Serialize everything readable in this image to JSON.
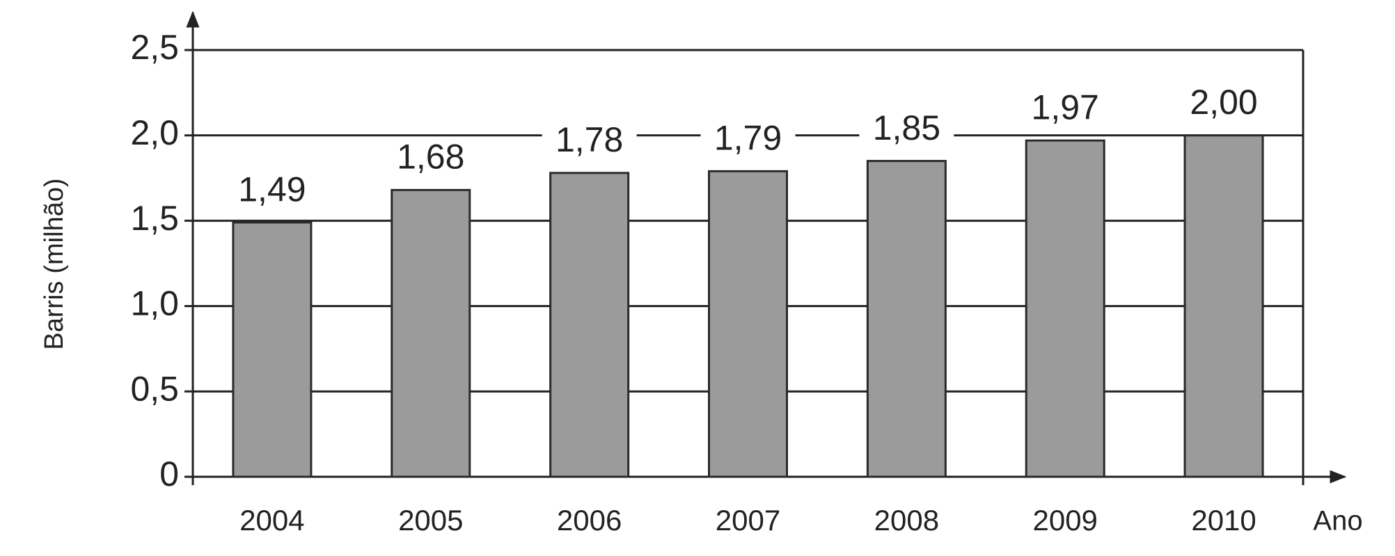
{
  "chart_data": {
    "type": "bar",
    "y_label": "Barris (milhão)",
    "x_label": "Ano",
    "categories": [
      "2004",
      "2005",
      "2006",
      "2007",
      "2008",
      "2009",
      "2010"
    ],
    "values": [
      1.49,
      1.68,
      1.78,
      1.79,
      1.85,
      1.97,
      2.0
    ],
    "value_labels": [
      "1,49",
      "1,68",
      "1,78",
      "1,79",
      "1,85",
      "1,97",
      "2,00"
    ],
    "color": "#9b9b9b",
    "ylim": [
      0,
      2.5
    ],
    "yticks": [
      0,
      {
        "value": 0.5,
        "label": "0,5"
      },
      {
        "value": 1.0,
        "label": "1,0"
      },
      {
        "value": 1.5,
        "label": "1,5"
      },
      {
        "value": 2.0,
        "label": "2,0"
      },
      {
        "value": 2.5,
        "label": "2,5"
      }
    ],
    "grid": true
  }
}
